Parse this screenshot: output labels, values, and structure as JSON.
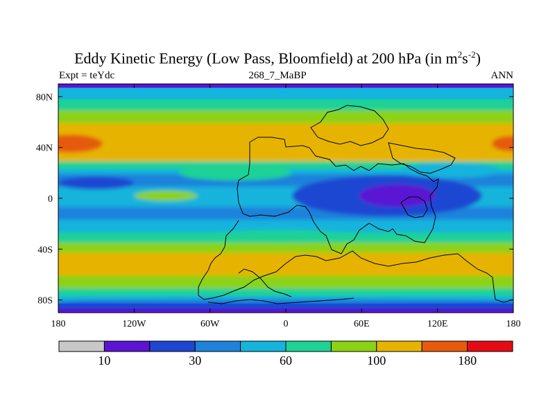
{
  "chart_data": {
    "type": "heatmap",
    "title": "Eddy Kinetic Energy (Low Pass, Bloomfield) at 200 hPa (in m",
    "title_units_sup1": "2",
    "title_units_mid": "s",
    "title_units_sup2": "-2",
    "title_units_end": ")",
    "subtitle_left": "Expt = teYdc",
    "subtitle_center": "268_7_MaBP",
    "subtitle_right": "ANN",
    "xlabel": "",
    "ylabel": "",
    "xlim": [
      -180,
      180
    ],
    "ylim": [
      -90,
      90
    ],
    "x_ticks": [
      {
        "value": -180,
        "label": "180"
      },
      {
        "value": -120,
        "label": "120W"
      },
      {
        "value": -60,
        "label": "60W"
      },
      {
        "value": 0,
        "label": "0"
      },
      {
        "value": 60,
        "label": "60E"
      },
      {
        "value": 120,
        "label": "120E"
      },
      {
        "value": 180,
        "label": "180"
      }
    ],
    "y_ticks": [
      {
        "value": 80,
        "label": "80N"
      },
      {
        "value": 40,
        "label": "40N"
      },
      {
        "value": 0,
        "label": "0"
      },
      {
        "value": -40,
        "label": "40S"
      },
      {
        "value": -80,
        "label": "80S"
      }
    ],
    "colorbar": {
      "colors": [
        "#c8c8c8",
        "#5a14d2",
        "#1e46d2",
        "#1e82dc",
        "#14b4dc",
        "#1ed296",
        "#8cd214",
        "#e6b400",
        "#e65a0a",
        "#e60a14"
      ],
      "labels": [
        {
          "after_box": 1,
          "label": "10"
        },
        {
          "after_box": 3,
          "label": "30"
        },
        {
          "after_box": 5,
          "label": "60"
        },
        {
          "after_box": 7,
          "label": "100"
        },
        {
          "after_box": 9,
          "label": "180"
        }
      ]
    },
    "levels": [
      5,
      10,
      20,
      30,
      45,
      60,
      80,
      100,
      140,
      180
    ],
    "zonal_bands": [
      {
        "lat_from": 90,
        "lat_to": 87,
        "level_index": 1
      },
      {
        "lat_from": 87,
        "lat_to": 78,
        "level_index": 4
      },
      {
        "lat_from": 78,
        "lat_to": 68,
        "level_index": 5
      },
      {
        "lat_from": 68,
        "lat_to": 58,
        "level_index": 6
      },
      {
        "lat_from": 58,
        "lat_to": 28,
        "level_index": 7
      },
      {
        "lat_from": 28,
        "lat_to": 22,
        "level_index": 5
      },
      {
        "lat_from": 22,
        "lat_to": 18,
        "level_index": 4
      },
      {
        "lat_from": 18,
        "lat_to": 8,
        "level_index": 3
      },
      {
        "lat_from": 8,
        "lat_to": -8,
        "level_index": 4
      },
      {
        "lat_from": -8,
        "lat_to": -18,
        "level_index": 3
      },
      {
        "lat_from": -18,
        "lat_to": -28,
        "level_index": 4
      },
      {
        "lat_from": -28,
        "lat_to": -36,
        "level_index": 5
      },
      {
        "lat_from": -36,
        "lat_to": -44,
        "level_index": 6
      },
      {
        "lat_from": -44,
        "lat_to": -62,
        "level_index": 7
      },
      {
        "lat_from": -62,
        "lat_to": -72,
        "level_index": 6
      },
      {
        "lat_from": -72,
        "lat_to": -78,
        "level_index": 5
      },
      {
        "lat_from": -78,
        "lat_to": -83,
        "level_index": 4
      },
      {
        "lat_from": -83,
        "lat_to": -87,
        "level_index": 2
      },
      {
        "lat_from": -87,
        "lat_to": -90,
        "level_index": 1
      }
    ],
    "features": [
      {
        "name": "NH jet max west",
        "lon": -170,
        "lat": 43,
        "lon_radius": 25,
        "lat_radius": 7,
        "level_index": 8
      },
      {
        "name": "NH jet max east",
        "lon": 178,
        "lat": 43,
        "lon_radius": 15,
        "lat_radius": 6,
        "level_index": 8
      },
      {
        "name": "Tropical low outer",
        "lon": 80,
        "lat": 2,
        "lon_radius": 75,
        "lat_radius": 16,
        "level_index": 2
      },
      {
        "name": "Tropical low inner",
        "lon": 88,
        "lat": 2,
        "lon_radius": 30,
        "lat_radius": 9,
        "level_index": 1
      },
      {
        "name": "NE Pacific low",
        "lon": -150,
        "lat": 12,
        "lon_radius": 30,
        "lat_radius": 5,
        "level_index": 2
      },
      {
        "name": "Subtropical N Atlantic",
        "lon": -40,
        "lat": 20,
        "lon_radius": 45,
        "lat_radius": 6,
        "level_index": 5
      },
      {
        "name": "Subtropical N Pacific",
        "lon": 130,
        "lat": 22,
        "lon_radius": 40,
        "lat_radius": 6,
        "level_index": 4
      },
      {
        "name": "Tropical Pacific green",
        "lon": -95,
        "lat": 2,
        "lon_radius": 25,
        "lat_radius": 4,
        "level_index": 6
      },
      {
        "name": "S subtropical light",
        "lon": -5,
        "lat": -30,
        "lon_radius": 60,
        "lat_radius": 5,
        "level_index": 5
      },
      {
        "name": "Antarctic blue",
        "lon": 0,
        "lat": -81,
        "lon_radius": 180,
        "lat_radius": 2,
        "level_index": 3
      }
    ]
  }
}
